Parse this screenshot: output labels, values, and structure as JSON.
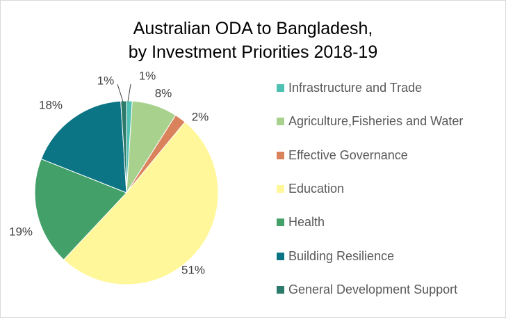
{
  "chart_data": {
    "type": "pie",
    "title": "Australian ODA to Bangladesh, by Investment Priorities 2018-19",
    "title_lines": [
      "Australian ODA to Bangladesh,",
      "by Investment Priorities 2018-19"
    ],
    "legend_position": "right",
    "slices": [
      {
        "label": "Infrastructure and Trade",
        "value": 1,
        "display": "1%",
        "color": "#4fc1b3"
      },
      {
        "label": "Agriculture,Fisheries and Water",
        "value": 8,
        "display": "8%",
        "color": "#a9d18e"
      },
      {
        "label": "Effective Governance",
        "value": 2,
        "display": "2%",
        "color": "#d9825b"
      },
      {
        "label": "Education",
        "value": 51,
        "display": "51%",
        "color": "#fff799"
      },
      {
        "label": "Health",
        "value": 19,
        "display": "19%",
        "color": "#43a068"
      },
      {
        "label": "Building Resilience",
        "value": 18,
        "display": "18%",
        "color": "#0c7585"
      },
      {
        "label": "General Development Support",
        "value": 1,
        "display": "1%",
        "color": "#2b7a6a"
      }
    ]
  }
}
